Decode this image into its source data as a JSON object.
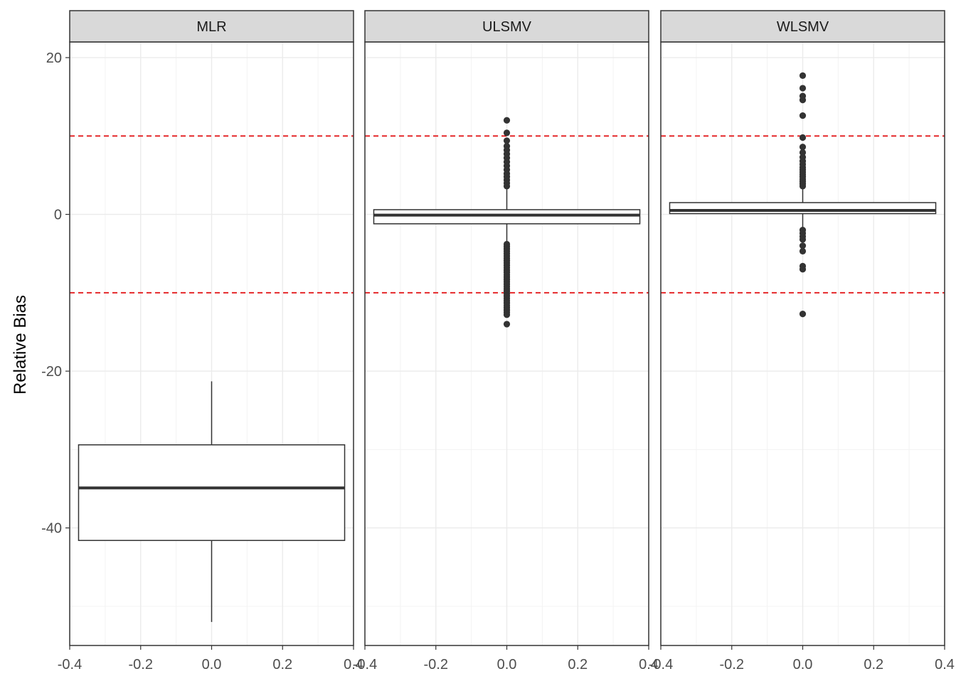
{
  "chart_data": {
    "type": "boxplot",
    "ylabel": "Relative Bias",
    "xlabel": "",
    "xlim": [
      -0.4,
      0.4
    ],
    "ylim": [
      -55,
      22
    ],
    "x_ticks": [
      -0.4,
      -0.2,
      0.0,
      0.2,
      0.4
    ],
    "x_tick_labels": [
      "-0.4",
      "-0.2",
      "0.0",
      "0.2",
      "0.4"
    ],
    "y_ticks": [
      20,
      0,
      -20,
      -40
    ],
    "y_tick_labels": [
      "20",
      "0",
      "-20",
      "-40"
    ],
    "reference_lines": [
      10,
      -10
    ],
    "reference_line_color": "#e31a1c",
    "grid": true,
    "panels": [
      {
        "label": "MLR",
        "box": {
          "x_from": -0.375,
          "x_to": 0.375,
          "q1": -41.6,
          "median": -34.9,
          "q3": -29.4,
          "whisker_low": -52.0,
          "whisker_high": -21.3
        },
        "outliers": []
      },
      {
        "label": "ULSMV",
        "box": {
          "x_from": -0.375,
          "x_to": 0.375,
          "q1": -1.2,
          "median": -0.1,
          "q3": 0.6,
          "whisker_low": -3.5,
          "whisker_high": 3.2
        },
        "outliers": [
          12.0,
          10.4,
          9.4,
          8.7,
          8.2,
          7.7,
          7.2,
          6.7,
          6.2,
          5.7,
          5.2,
          4.8,
          4.4,
          4.0,
          3.6,
          -3.8,
          -4.1,
          -4.4,
          -4.7,
          -5.0,
          -5.3,
          -5.6,
          -5.9,
          -6.2,
          -6.5,
          -6.8,
          -7.1,
          -7.4,
          -7.7,
          -8.0,
          -8.3,
          -8.6,
          -8.9,
          -9.2,
          -9.5,
          -9.8,
          -10.1,
          -10.4,
          -10.7,
          -11.0,
          -11.3,
          -11.6,
          -11.9,
          -12.2,
          -12.5,
          -12.8,
          -14.0
        ]
      },
      {
        "label": "WLSMV",
        "box": {
          "x_from": -0.375,
          "x_to": 0.375,
          "q1": 0.1,
          "median": 0.5,
          "q3": 1.5,
          "whisker_low": -1.8,
          "whisker_high": 3.3
        },
        "outliers": [
          17.7,
          16.1,
          15.1,
          14.6,
          12.6,
          9.8,
          8.6,
          7.9,
          7.3,
          6.8,
          6.4,
          6.0,
          5.7,
          5.4,
          5.1,
          4.8,
          4.5,
          4.2,
          3.9,
          3.6,
          -2.0,
          -2.4,
          -2.8,
          -3.2,
          -4.0,
          -4.7,
          -6.6,
          -7.0,
          -12.7
        ]
      }
    ],
    "colors": {
      "strip_fill": "#d9d9d9",
      "panel_border": "#333333",
      "box_line": "#333333",
      "outlier": "#333333",
      "grid_major": "#ebebeb",
      "grid_minor": "#f3f3f3"
    }
  }
}
